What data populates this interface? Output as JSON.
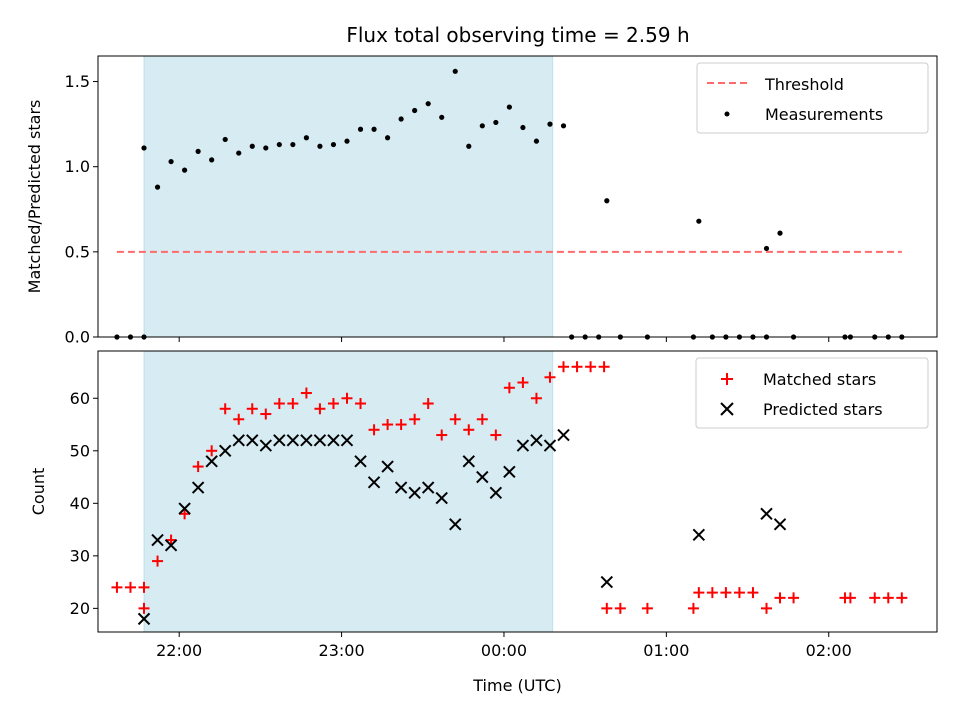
{
  "figure": {
    "title": "Flux total observing time = 2.59 h",
    "xlabel": "Time (UTC)"
  },
  "chart_data": [
    {
      "type": "scatter",
      "title": "Flux total observing time = 2.59 h",
      "ylabel": "Matched/Predicted stars",
      "xlim": [
        "21:30",
        "02:40"
      ],
      "ylim": [
        0,
        1.65
      ],
      "yticks": [
        0.0,
        0.5,
        1.0,
        1.5
      ],
      "ytick_labels": [
        "0.0",
        "0.5",
        "1.0",
        "1.5"
      ],
      "shaded_region": {
        "start": "21:47",
        "end": "00:18",
        "color": "#add8e6"
      },
      "legend_position": "top-right",
      "threshold": {
        "name": "Threshold",
        "value": 0.5,
        "x_start": "21:37",
        "x_end": "02:27",
        "color": "#ff6b6b"
      },
      "series": [
        {
          "name": "Measurements",
          "color": "#000000",
          "points": [
            [
              "21:37",
              0.0
            ],
            [
              "21:42",
              0.0
            ],
            [
              "21:47",
              0.0
            ],
            [
              "21:47",
              1.11
            ],
            [
              "21:52",
              0.88
            ],
            [
              "21:57",
              1.03
            ],
            [
              "22:02",
              0.98
            ],
            [
              "22:07",
              1.09
            ],
            [
              "22:12",
              1.04
            ],
            [
              "22:17",
              1.16
            ],
            [
              "22:22",
              1.08
            ],
            [
              "22:27",
              1.12
            ],
            [
              "22:32",
              1.11
            ],
            [
              "22:37",
              1.13
            ],
            [
              "22:42",
              1.13
            ],
            [
              "22:47",
              1.17
            ],
            [
              "22:52",
              1.12
            ],
            [
              "22:57",
              1.13
            ],
            [
              "23:02",
              1.15
            ],
            [
              "23:07",
              1.22
            ],
            [
              "23:12",
              1.22
            ],
            [
              "23:17",
              1.17
            ],
            [
              "23:22",
              1.28
            ],
            [
              "23:27",
              1.33
            ],
            [
              "23:32",
              1.37
            ],
            [
              "23:37",
              1.29
            ],
            [
              "23:42",
              1.56
            ],
            [
              "23:47",
              1.12
            ],
            [
              "23:52",
              1.24
            ],
            [
              "23:57",
              1.26
            ],
            [
              "00:02",
              1.35
            ],
            [
              "00:07",
              1.23
            ],
            [
              "00:12",
              1.15
            ],
            [
              "00:17",
              1.25
            ],
            [
              "00:22",
              1.24
            ],
            [
              "00:25",
              0.0
            ],
            [
              "00:30",
              0.0
            ],
            [
              "00:35",
              0.0
            ],
            [
              "00:43",
              0.0
            ],
            [
              "00:53",
              0.0
            ],
            [
              "00:38",
              0.8
            ],
            [
              "01:10",
              0.0
            ],
            [
              "01:17",
              0.0
            ],
            [
              "01:22",
              0.0
            ],
            [
              "01:27",
              0.0
            ],
            [
              "01:32",
              0.0
            ],
            [
              "01:37",
              0.0
            ],
            [
              "01:12",
              0.68
            ],
            [
              "01:37",
              0.52
            ],
            [
              "01:42",
              0.61
            ],
            [
              "01:47",
              0.0
            ],
            [
              "02:06",
              0.0
            ],
            [
              "02:08",
              0.0
            ],
            [
              "02:17",
              0.0
            ],
            [
              "02:22",
              0.0
            ],
            [
              "02:27",
              0.0
            ]
          ]
        }
      ]
    },
    {
      "type": "scatter",
      "ylabel": "Count",
      "xlabel": "Time (UTC)",
      "xlim": [
        "21:30",
        "02:40"
      ],
      "ylim": [
        15.5,
        69
      ],
      "yticks": [
        20,
        30,
        40,
        50,
        60
      ],
      "xtick_labels": [
        "22:00",
        "23:00",
        "00:00",
        "01:00",
        "02:00"
      ],
      "shaded_region": {
        "start": "21:47",
        "end": "00:18",
        "color": "#add8e6"
      },
      "legend_position": "top-right",
      "series": [
        {
          "name": "Matched stars",
          "marker": "plus",
          "color": "#ff0000",
          "points": [
            [
              "21:37",
              24
            ],
            [
              "21:42",
              24
            ],
            [
              "21:47",
              24
            ],
            [
              "21:47",
              20
            ],
            [
              "21:52",
              29
            ],
            [
              "21:57",
              33
            ],
            [
              "22:02",
              38
            ],
            [
              "22:07",
              47
            ],
            [
              "22:12",
              50
            ],
            [
              "22:17",
              58
            ],
            [
              "22:22",
              56
            ],
            [
              "22:27",
              58
            ],
            [
              "22:32",
              57
            ],
            [
              "22:37",
              59
            ],
            [
              "22:42",
              59
            ],
            [
              "22:47",
              61
            ],
            [
              "22:52",
              58
            ],
            [
              "22:57",
              59
            ],
            [
              "23:02",
              60
            ],
            [
              "23:07",
              59
            ],
            [
              "23:12",
              54
            ],
            [
              "23:17",
              55
            ],
            [
              "23:22",
              55
            ],
            [
              "23:27",
              56
            ],
            [
              "23:32",
              59
            ],
            [
              "23:37",
              53
            ],
            [
              "23:42",
              56
            ],
            [
              "23:47",
              54
            ],
            [
              "23:52",
              56
            ],
            [
              "23:57",
              53
            ],
            [
              "00:02",
              62
            ],
            [
              "00:07",
              63
            ],
            [
              "00:12",
              60
            ],
            [
              "00:17",
              64
            ],
            [
              "00:22",
              66
            ],
            [
              "00:27",
              66
            ],
            [
              "00:32",
              66
            ],
            [
              "00:37",
              66
            ],
            [
              "00:38",
              20
            ],
            [
              "00:43",
              20
            ],
            [
              "00:53",
              20
            ],
            [
              "01:10",
              20
            ],
            [
              "01:12",
              23
            ],
            [
              "01:17",
              23
            ],
            [
              "01:22",
              23
            ],
            [
              "01:27",
              23
            ],
            [
              "01:32",
              23
            ],
            [
              "01:37",
              20
            ],
            [
              "01:42",
              22
            ],
            [
              "01:47",
              22
            ],
            [
              "02:06",
              22
            ],
            [
              "02:08",
              22
            ],
            [
              "02:17",
              22
            ],
            [
              "02:22",
              22
            ],
            [
              "02:27",
              22
            ]
          ]
        },
        {
          "name": "Predicted stars",
          "marker": "x",
          "color": "#000000",
          "points": [
            [
              "21:47",
              18
            ],
            [
              "21:52",
              33
            ],
            [
              "21:57",
              32
            ],
            [
              "22:02",
              39
            ],
            [
              "22:07",
              43
            ],
            [
              "22:12",
              48
            ],
            [
              "22:17",
              50
            ],
            [
              "22:22",
              52
            ],
            [
              "22:27",
              52
            ],
            [
              "22:32",
              51
            ],
            [
              "22:37",
              52
            ],
            [
              "22:42",
              52
            ],
            [
              "22:47",
              52
            ],
            [
              "22:52",
              52
            ],
            [
              "22:57",
              52
            ],
            [
              "23:02",
              52
            ],
            [
              "23:07",
              48
            ],
            [
              "23:12",
              44
            ],
            [
              "23:17",
              47
            ],
            [
              "23:22",
              43
            ],
            [
              "23:27",
              42
            ],
            [
              "23:32",
              43
            ],
            [
              "23:37",
              41
            ],
            [
              "23:42",
              36
            ],
            [
              "23:47",
              48
            ],
            [
              "23:52",
              45
            ],
            [
              "23:57",
              42
            ],
            [
              "00:02",
              46
            ],
            [
              "00:07",
              51
            ],
            [
              "00:12",
              52
            ],
            [
              "00:17",
              51
            ],
            [
              "00:22",
              53
            ],
            [
              "00:38",
              25
            ],
            [
              "01:12",
              34
            ],
            [
              "01:37",
              38
            ],
            [
              "01:42",
              36
            ]
          ]
        }
      ]
    }
  ]
}
